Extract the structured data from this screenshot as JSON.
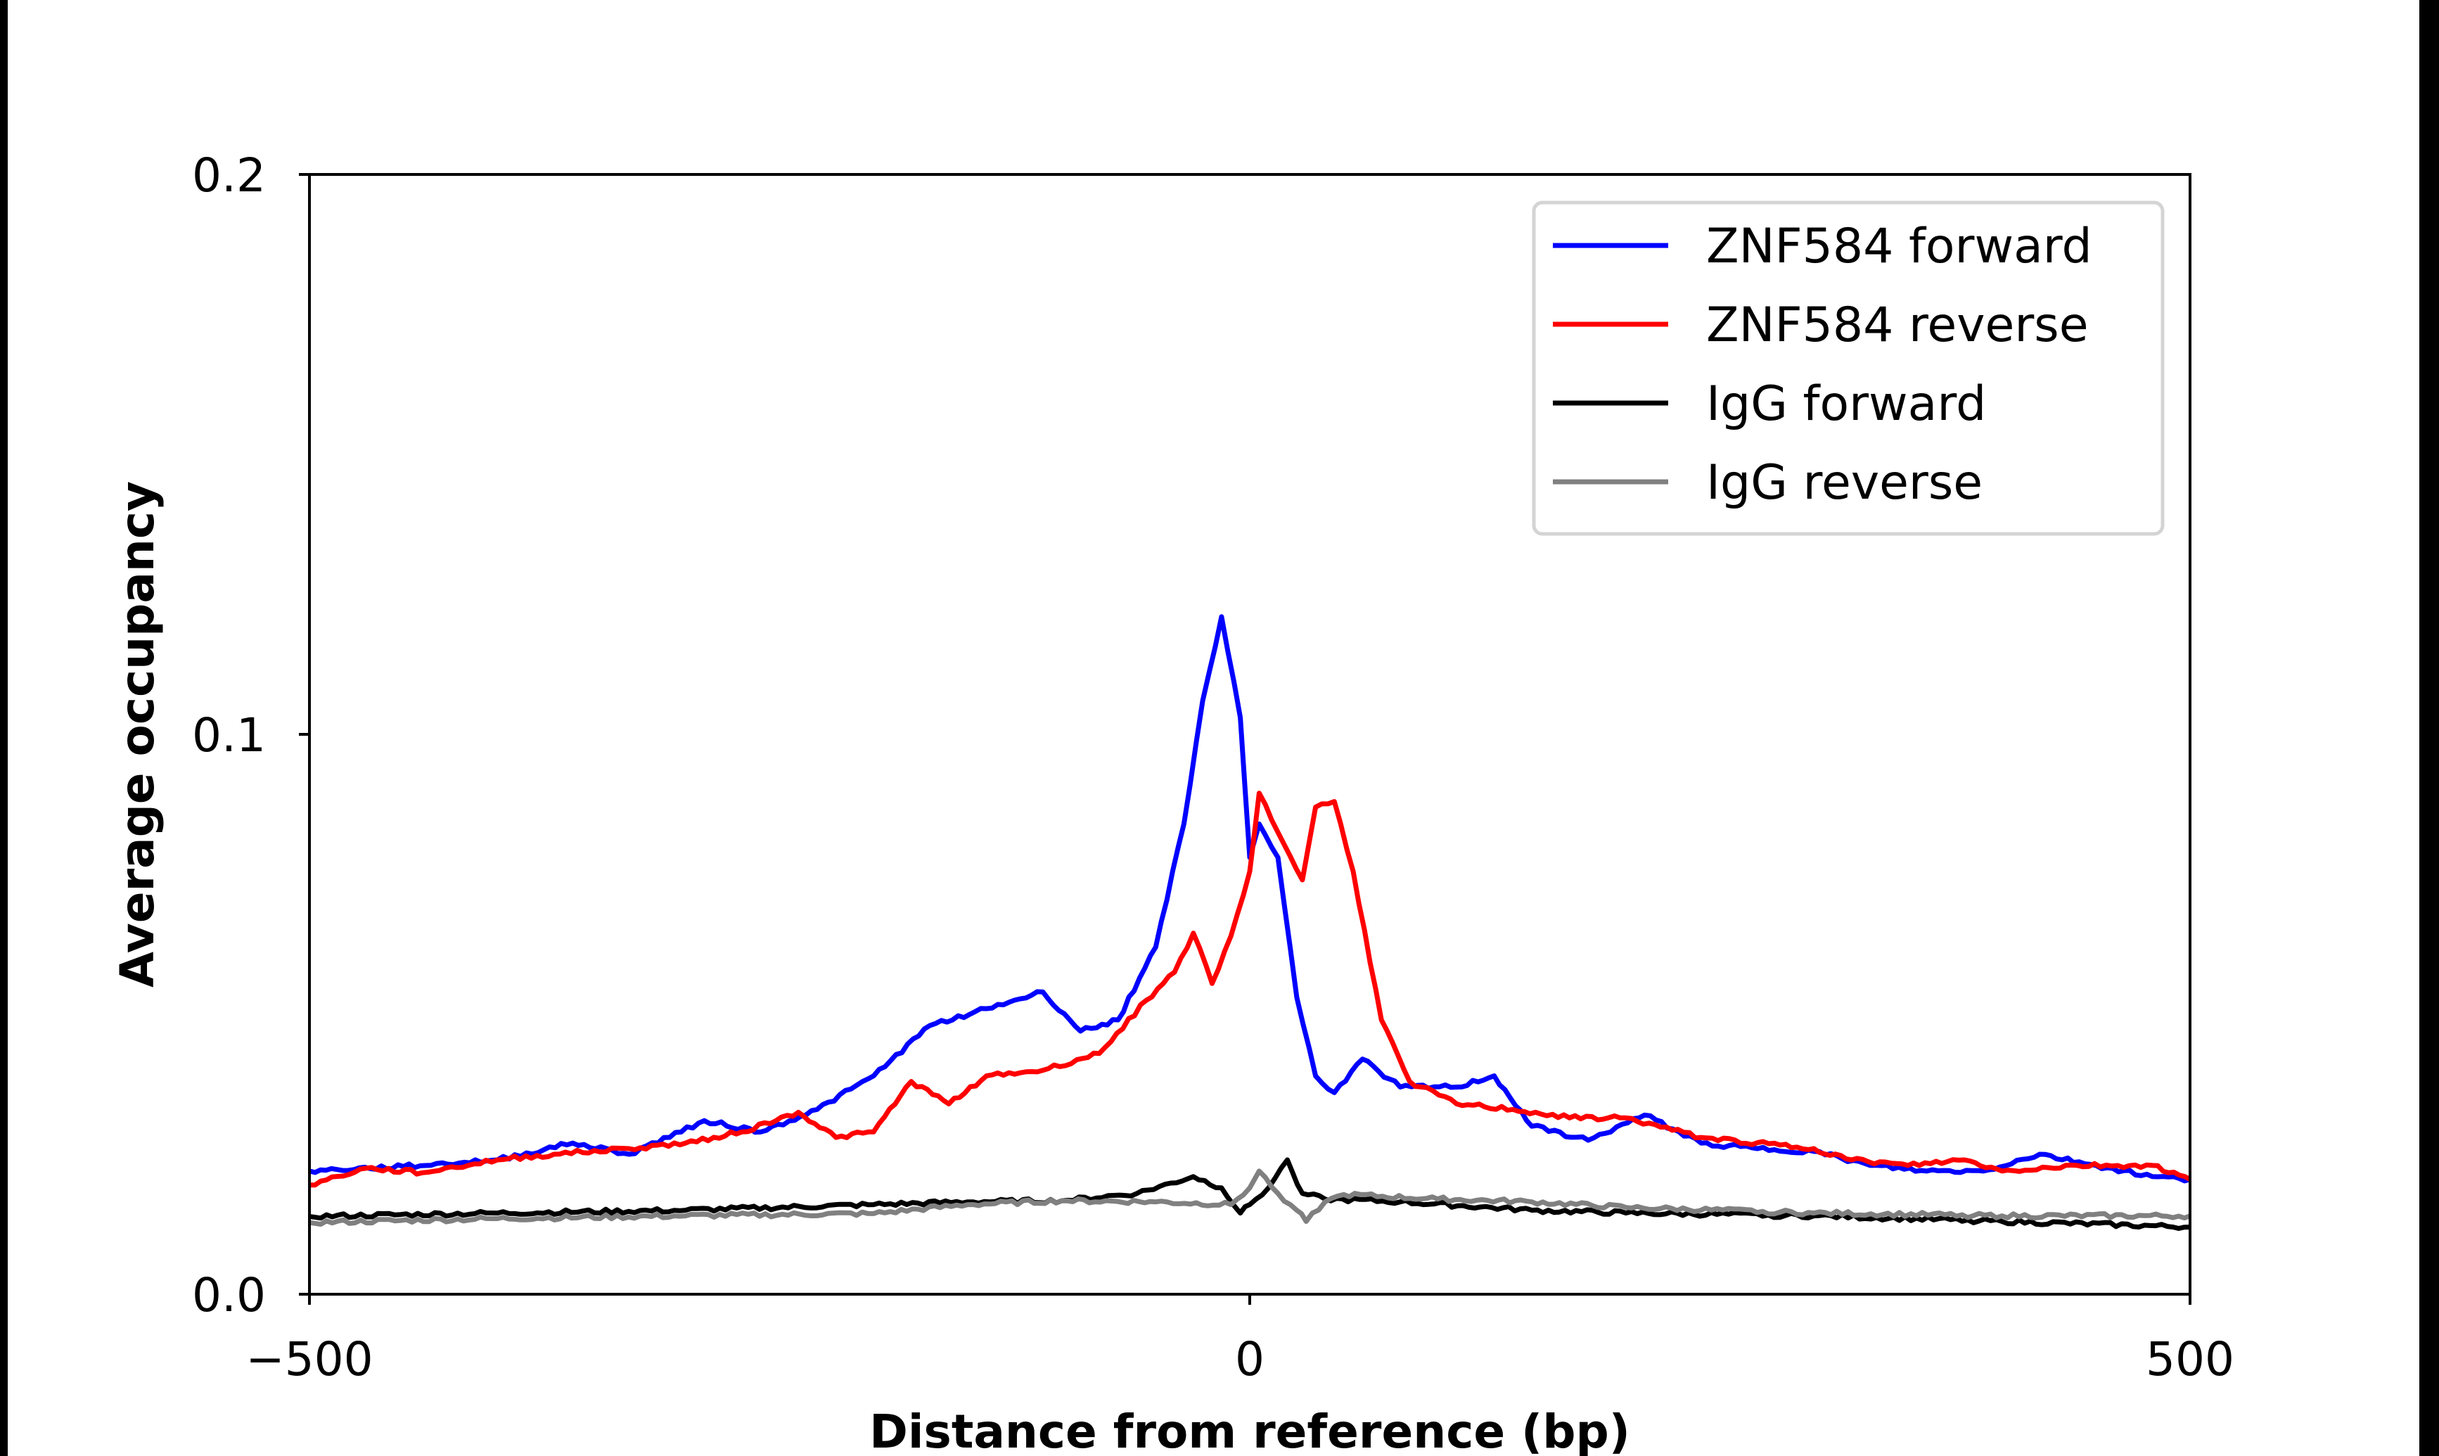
{
  "chart_data": {
    "type": "line",
    "title": "",
    "xlabel": "Distance from reference (bp)",
    "ylabel": "Average occupancy",
    "xlim": [
      -500,
      500
    ],
    "ylim": [
      0.0,
      0.2
    ],
    "xticks": [
      -500,
      0,
      500
    ],
    "xtick_labels": [
      "−500",
      "0",
      "500"
    ],
    "yticks": [
      0.0,
      0.1,
      0.2
    ],
    "ytick_labels": [
      "0.0",
      "0.1",
      "0.2"
    ],
    "grid": false,
    "legend_position": "top-right",
    "series": [
      {
        "name": "ZNF584 forward",
        "color": "#0000ff",
        "x": [
          -500,
          -450,
          -400,
          -360,
          -330,
          -290,
          -260,
          -230,
          -200,
          -170,
          -140,
          -110,
          -90,
          -70,
          -50,
          -35,
          -25,
          -15,
          -5,
          0,
          5,
          15,
          25,
          35,
          45,
          60,
          80,
          110,
          130,
          150,
          180,
          210,
          240,
          270,
          300,
          330,
          360,
          390,
          420,
          450,
          480,
          500
        ],
        "y": [
          0.022,
          0.0228,
          0.024,
          0.027,
          0.025,
          0.031,
          0.029,
          0.033,
          0.039,
          0.048,
          0.051,
          0.054,
          0.047,
          0.049,
          0.062,
          0.084,
          0.106,
          0.121,
          0.103,
          0.078,
          0.084,
          0.078,
          0.053,
          0.039,
          0.036,
          0.042,
          0.037,
          0.037,
          0.039,
          0.03,
          0.0275,
          0.032,
          0.027,
          0.026,
          0.0255,
          0.023,
          0.022,
          0.022,
          0.025,
          0.023,
          0.021,
          0.0205
        ]
      },
      {
        "name": "ZNF584 reverse",
        "color": "#ff0000",
        "x": [
          -500,
          -470,
          -440,
          -400,
          -370,
          -330,
          -300,
          -270,
          -240,
          -220,
          -200,
          -180,
          -160,
          -140,
          -110,
          -80,
          -55,
          -40,
          -30,
          -20,
          -10,
          0,
          5,
          15,
          28,
          35,
          45,
          55,
          70,
          85,
          110,
          140,
          170,
          200,
          240,
          300,
          320,
          350,
          380,
          400,
          440,
          480,
          500
        ],
        "y": [
          0.0195,
          0.0225,
          0.0217,
          0.024,
          0.025,
          0.026,
          0.027,
          0.029,
          0.0325,
          0.028,
          0.029,
          0.038,
          0.034,
          0.039,
          0.04,
          0.043,
          0.0525,
          0.0575,
          0.0645,
          0.0555,
          0.064,
          0.0755,
          0.0895,
          0.0825,
          0.074,
          0.087,
          0.088,
          0.0755,
          0.049,
          0.038,
          0.034,
          0.033,
          0.0315,
          0.0315,
          0.028,
          0.026,
          0.024,
          0.023,
          0.024,
          0.022,
          0.023,
          0.023,
          0.0205
        ]
      },
      {
        "name": "IgG forward",
        "color": "#000000",
        "x": [
          -500,
          -400,
          -300,
          -200,
          -150,
          -100,
          -60,
          -30,
          -15,
          -5,
          0,
          10,
          20,
          28,
          40,
          80,
          150,
          200,
          300,
          400,
          500
        ],
        "y": [
          0.0139,
          0.0145,
          0.015,
          0.016,
          0.0165,
          0.0167,
          0.018,
          0.021,
          0.019,
          0.0145,
          0.016,
          0.019,
          0.024,
          0.018,
          0.017,
          0.0165,
          0.015,
          0.0145,
          0.014,
          0.013,
          0.012
        ]
      },
      {
        "name": "IgG reverse",
        "color": "#808080",
        "x": [
          -500,
          -400,
          -300,
          -200,
          -150,
          -100,
          -50,
          -10,
          0,
          5,
          15,
          25,
          30,
          40,
          50,
          100,
          150,
          200,
          300,
          400,
          500
        ],
        "y": [
          0.0128,
          0.0135,
          0.014,
          0.0144,
          0.016,
          0.0167,
          0.0165,
          0.016,
          0.019,
          0.022,
          0.018,
          0.015,
          0.013,
          0.0165,
          0.0178,
          0.017,
          0.0165,
          0.0155,
          0.0145,
          0.014,
          0.014
        ]
      }
    ]
  }
}
